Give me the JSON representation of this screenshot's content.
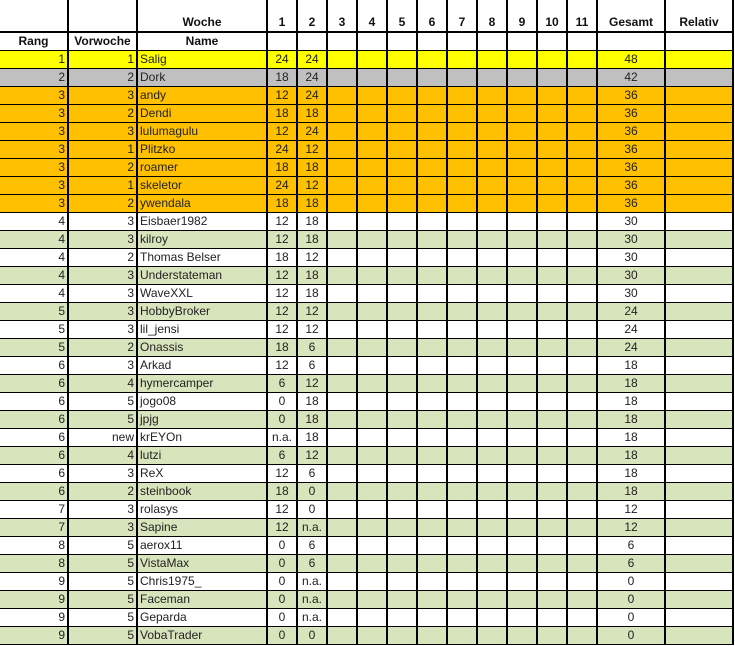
{
  "header": {
    "woche_label": "Woche",
    "weeks": [
      "1",
      "2",
      "3",
      "4",
      "5",
      "6",
      "7",
      "8",
      "9",
      "10",
      "11"
    ],
    "gesamt_label": "Gesamt",
    "relativ_label": "Relativ",
    "rang_label": "Rang",
    "vorwoche_label": "Vorwoche",
    "name_label": "Name"
  },
  "colors": {
    "gold": "#ffff00",
    "silver": "#c0c0c0",
    "bronze": "#ffc000",
    "stripe": "#d8e4bc",
    "plain": "#ffffff"
  },
  "rows": [
    {
      "rang": "1",
      "vorwoche": "1",
      "name": "Salig",
      "w1": "24",
      "w2": "24",
      "gesamt": "48",
      "highlight": "gold"
    },
    {
      "rang": "2",
      "vorwoche": "2",
      "name": "Dork",
      "w1": "18",
      "w2": "24",
      "gesamt": "42",
      "highlight": "silver"
    },
    {
      "rang": "3",
      "vorwoche": "3",
      "name": "andy",
      "w1": "12",
      "w2": "24",
      "gesamt": "36",
      "highlight": "bronze"
    },
    {
      "rang": "3",
      "vorwoche": "2",
      "name": "Dendi",
      "w1": "18",
      "w2": "18",
      "gesamt": "36",
      "highlight": "bronze"
    },
    {
      "rang": "3",
      "vorwoche": "3",
      "name": "lulumagulu",
      "w1": "12",
      "w2": "24",
      "gesamt": "36",
      "highlight": "bronze"
    },
    {
      "rang": "3",
      "vorwoche": "1",
      "name": "Plitzko",
      "w1": "24",
      "w2": "12",
      "gesamt": "36",
      "highlight": "bronze"
    },
    {
      "rang": "3",
      "vorwoche": "2",
      "name": "roamer",
      "w1": "18",
      "w2": "18",
      "gesamt": "36",
      "highlight": "bronze"
    },
    {
      "rang": "3",
      "vorwoche": "1",
      "name": "skeletor",
      "w1": "24",
      "w2": "12",
      "gesamt": "36",
      "highlight": "bronze"
    },
    {
      "rang": "3",
      "vorwoche": "2",
      "name": "ywendala",
      "w1": "18",
      "w2": "18",
      "gesamt": "36",
      "highlight": "bronze"
    },
    {
      "rang": "4",
      "vorwoche": "3",
      "name": "Eisbaer1982",
      "w1": "12",
      "w2": "18",
      "gesamt": "30",
      "highlight": "plain"
    },
    {
      "rang": "4",
      "vorwoche": "3",
      "name": "kilroy",
      "w1": "12",
      "w2": "18",
      "gesamt": "30",
      "highlight": "stripe"
    },
    {
      "rang": "4",
      "vorwoche": "2",
      "name": "Thomas Belser",
      "w1": "18",
      "w2": "12",
      "gesamt": "30",
      "highlight": "plain"
    },
    {
      "rang": "4",
      "vorwoche": "3",
      "name": "Understateman",
      "w1": "12",
      "w2": "18",
      "gesamt": "30",
      "highlight": "stripe"
    },
    {
      "rang": "4",
      "vorwoche": "3",
      "name": "WaveXXL",
      "w1": "12",
      "w2": "18",
      "gesamt": "30",
      "highlight": "plain"
    },
    {
      "rang": "5",
      "vorwoche": "3",
      "name": "HobbyBroker",
      "w1": "12",
      "w2": "12",
      "gesamt": "24",
      "highlight": "stripe"
    },
    {
      "rang": "5",
      "vorwoche": "3",
      "name": "lil_jensi",
      "w1": "12",
      "w2": "12",
      "gesamt": "24",
      "highlight": "plain"
    },
    {
      "rang": "5",
      "vorwoche": "2",
      "name": "Onassis",
      "w1": "18",
      "w2": "6",
      "gesamt": "24",
      "highlight": "stripe"
    },
    {
      "rang": "6",
      "vorwoche": "3",
      "name": "Arkad",
      "w1": "12",
      "w2": "6",
      "gesamt": "18",
      "highlight": "plain"
    },
    {
      "rang": "6",
      "vorwoche": "4",
      "name": "hymercamper",
      "w1": "6",
      "w2": "12",
      "gesamt": "18",
      "highlight": "stripe"
    },
    {
      "rang": "6",
      "vorwoche": "5",
      "name": "jogo08",
      "w1": "0",
      "w2": "18",
      "gesamt": "18",
      "highlight": "plain"
    },
    {
      "rang": "6",
      "vorwoche": "5",
      "name": "jpjg",
      "w1": "0",
      "w2": "18",
      "gesamt": "18",
      "highlight": "stripe"
    },
    {
      "rang": "6",
      "vorwoche": "new",
      "name": "krEYOn",
      "w1": "n.a.",
      "w2": "18",
      "gesamt": "18",
      "highlight": "plain"
    },
    {
      "rang": "6",
      "vorwoche": "4",
      "name": "lutzi",
      "w1": "6",
      "w2": "12",
      "gesamt": "18",
      "highlight": "stripe"
    },
    {
      "rang": "6",
      "vorwoche": "3",
      "name": "ReX",
      "w1": "12",
      "w2": "6",
      "gesamt": "18",
      "highlight": "plain"
    },
    {
      "rang": "6",
      "vorwoche": "2",
      "name": "steinbook",
      "w1": "18",
      "w2": "0",
      "gesamt": "18",
      "highlight": "stripe"
    },
    {
      "rang": "7",
      "vorwoche": "3",
      "name": "rolasys",
      "w1": "12",
      "w2": "0",
      "gesamt": "12",
      "highlight": "plain"
    },
    {
      "rang": "7",
      "vorwoche": "3",
      "name": "Sapine",
      "w1": "12",
      "w2": "n.a.",
      "gesamt": "12",
      "highlight": "stripe"
    },
    {
      "rang": "8",
      "vorwoche": "5",
      "name": "aerox11",
      "w1": "0",
      "w2": "6",
      "gesamt": "6",
      "highlight": "plain"
    },
    {
      "rang": "8",
      "vorwoche": "5",
      "name": "VistaMax",
      "w1": "0",
      "w2": "6",
      "gesamt": "6",
      "highlight": "stripe"
    },
    {
      "rang": "9",
      "vorwoche": "5",
      "name": "Chris1975_",
      "w1": "0",
      "w2": "n.a.",
      "gesamt": "0",
      "highlight": "plain"
    },
    {
      "rang": "9",
      "vorwoche": "5",
      "name": "Faceman",
      "w1": "0",
      "w2": "n.a.",
      "gesamt": "0",
      "highlight": "stripe"
    },
    {
      "rang": "9",
      "vorwoche": "5",
      "name": "Geparda",
      "w1": "0",
      "w2": "n.a.",
      "gesamt": "0",
      "highlight": "plain"
    },
    {
      "rang": "9",
      "vorwoche": "5",
      "name": "VobaTrader",
      "w1": "0",
      "w2": "0",
      "gesamt": "0",
      "highlight": "stripe"
    }
  ]
}
